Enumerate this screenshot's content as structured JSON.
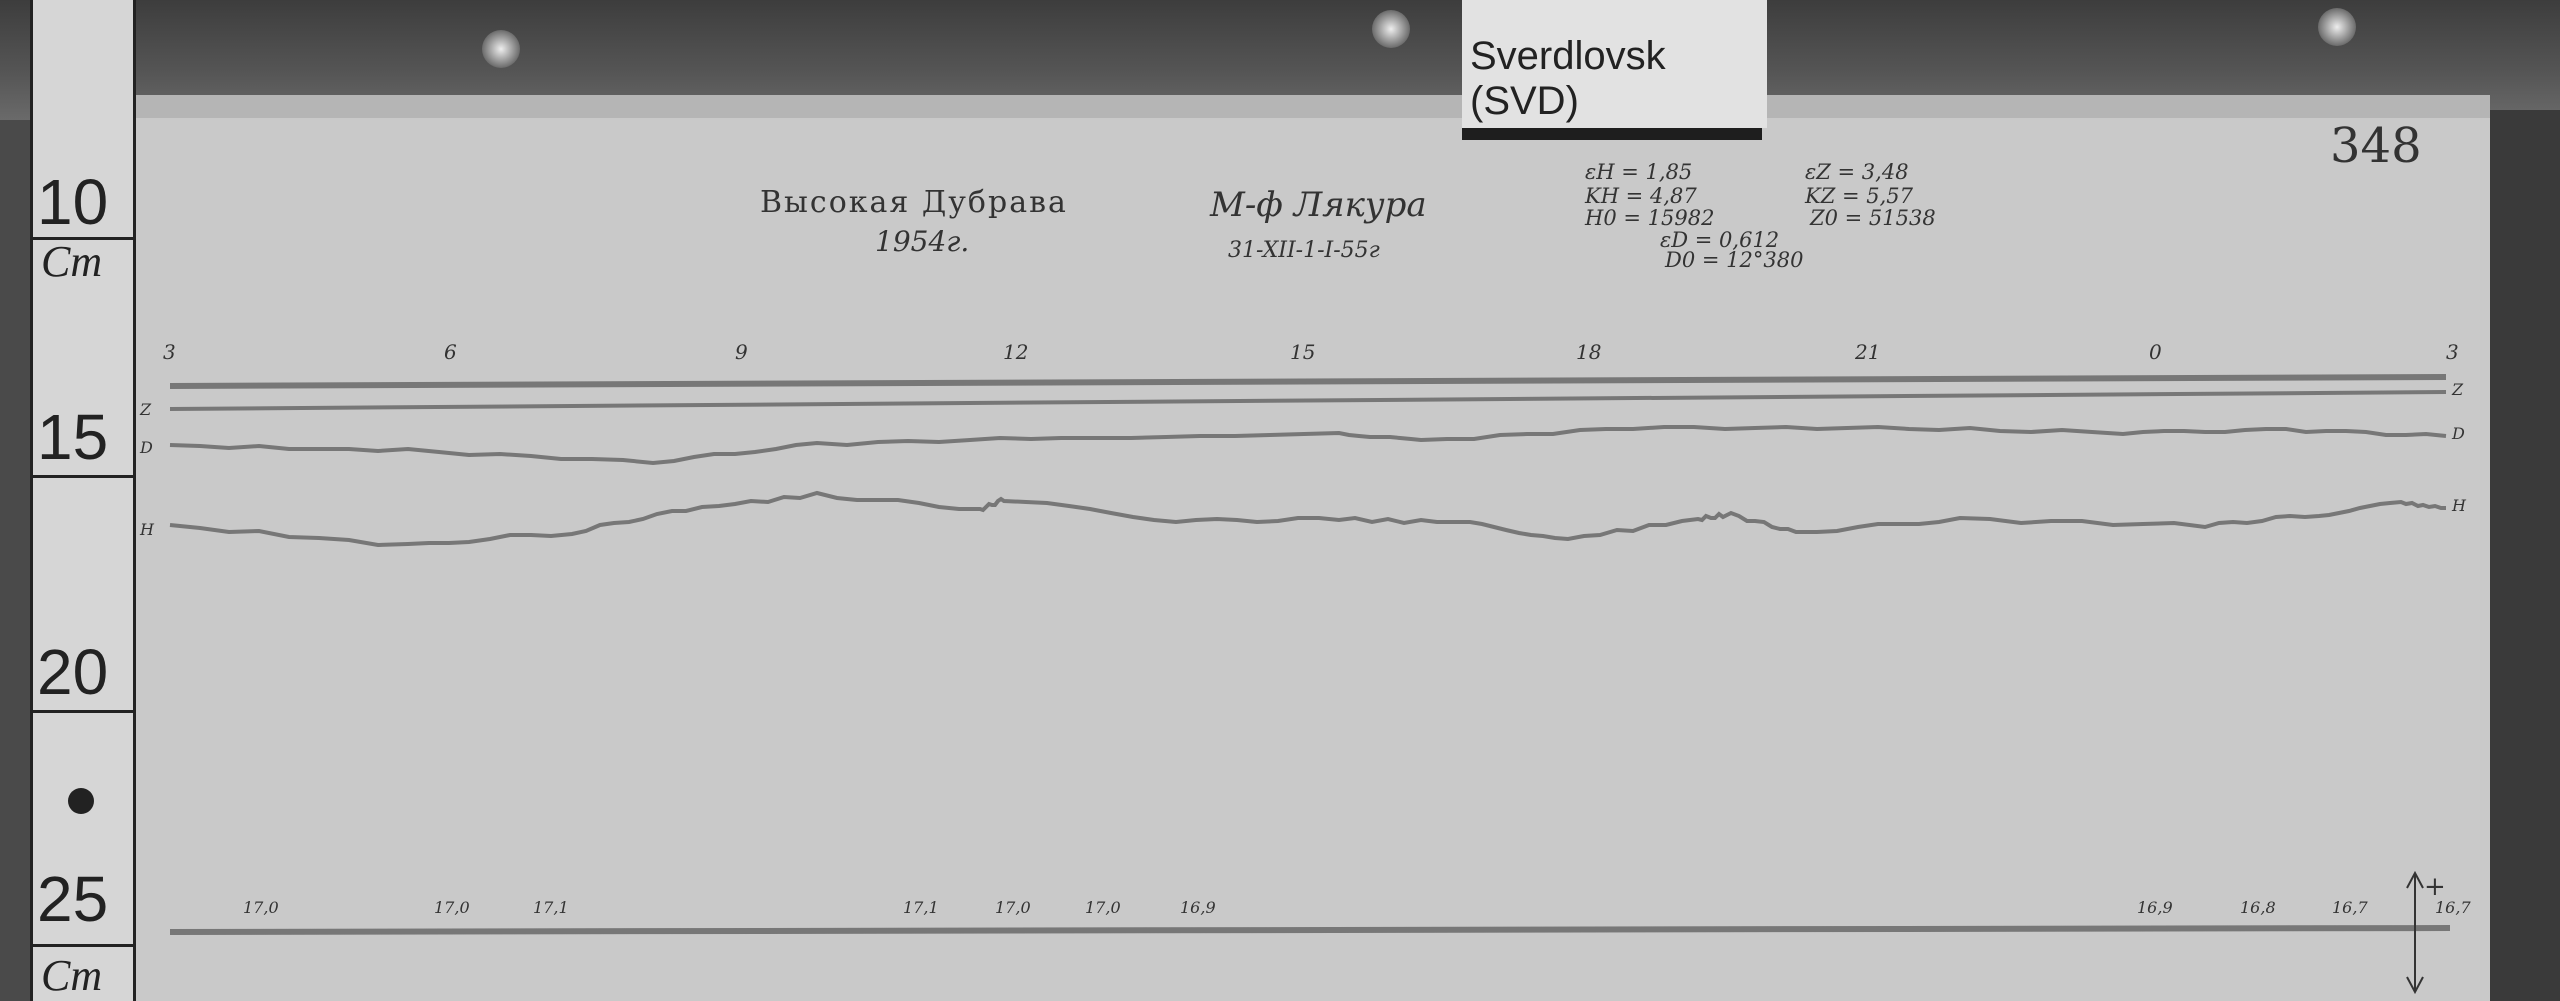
{
  "label": "Sverdlovsk (SVD)",
  "sheet_number": "348",
  "ruler": {
    "marks": [
      "10",
      "15",
      "20",
      "25"
    ],
    "unit": "Cm"
  },
  "header": {
    "station": "Высокая Дубрава",
    "year": "1954г.",
    "observer": "М-ф Лякура",
    "dates": "31-XII-1-I-55г",
    "constants": [
      "εH = 1,85",
      "εZ = 3,48",
      "KH = 4,87",
      "KZ = 5,57",
      "H0 = 15982",
      "Z0 = 51538",
      "εD = 0,612",
      "D0 = 12°380"
    ]
  },
  "hour_marks": [
    "3",
    "6",
    "9",
    "12",
    "15",
    "18",
    "21",
    "0",
    "3"
  ],
  "trace_labels": {
    "z": "Z",
    "d": "D",
    "h": "H"
  },
  "temperature_marks": [
    "17,0",
    "17,0",
    "17,1",
    "17,1",
    "17,0",
    "17,0",
    "16,9",
    "16,9",
    "16,8",
    "16,7",
    "16,7"
  ],
  "polarity": {
    "plus": "+",
    "minus": "−"
  }
}
